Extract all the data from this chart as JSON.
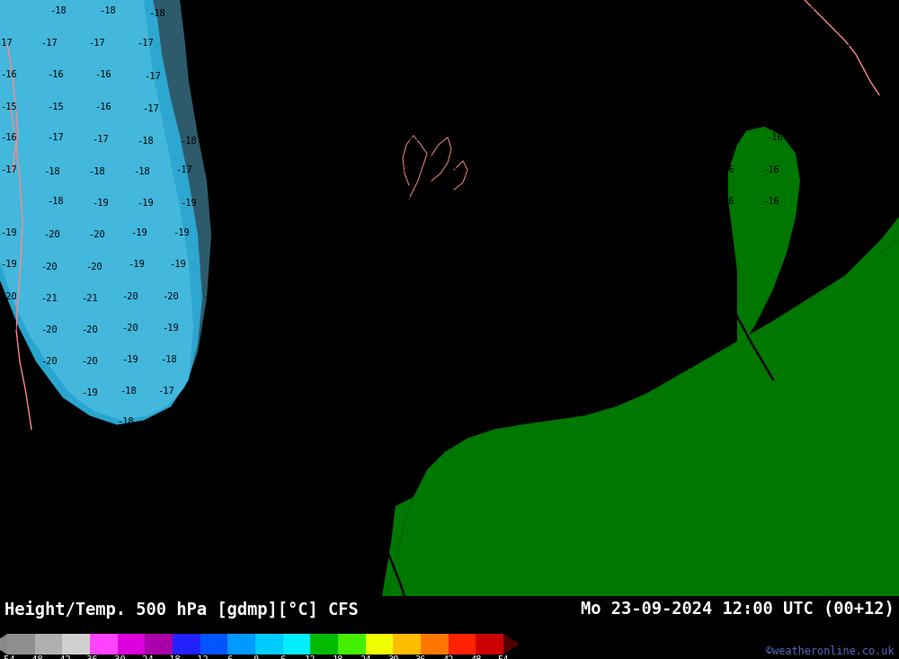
{
  "title_left": "Height/Temp. 500 hPa [gdmp][°C] CFS",
  "title_right": "Mo 23-09-2024 12:00 UTC (00+12)",
  "watermark": "©weatheronline.co.uk",
  "colorbar_values": [
    -54,
    -48,
    -42,
    -36,
    -30,
    -24,
    -18,
    -12,
    -6,
    0,
    6,
    12,
    18,
    24,
    30,
    36,
    42,
    48,
    54
  ],
  "colorbar_colors": [
    "#909090",
    "#b0b0b0",
    "#d0d0d0",
    "#ff44ff",
    "#dd00dd",
    "#aa00aa",
    "#2222ff",
    "#0055ff",
    "#0099ff",
    "#00ccff",
    "#00eeff",
    "#00bb00",
    "#44ee00",
    "#eeff00",
    "#ffbb00",
    "#ff7700",
    "#ff2200",
    "#cc0000",
    "#770000"
  ],
  "bg_color": "#00e0f0",
  "sea_color": "#00d8ee",
  "cold_blue_color": "#0099cc",
  "cold_blue2_color": "#55ccee",
  "land_color": "#007700",
  "bottom_bg": "#000000",
  "title_color": "#ffffff",
  "watermark_color": "#5566bb",
  "label_color": "#000000",
  "contour_color": "#000000",
  "coast_color": "#ff8888"
}
